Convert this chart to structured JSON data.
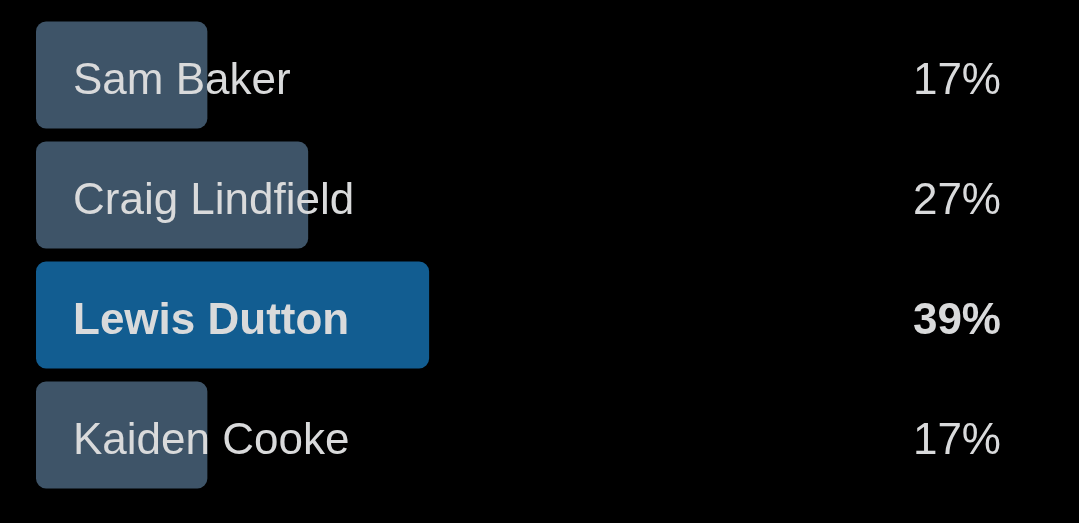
{
  "chart_data": {
    "type": "bar",
    "orientation": "horizontal",
    "categories": [
      "Sam Baker",
      "Craig Lindfield",
      "Lewis Dutton",
      "Kaiden Cooke"
    ],
    "values": [
      17,
      27,
      39,
      17
    ],
    "colors": [
      "#3e5468",
      "#3e5468",
      "#125d91",
      "#3e5468"
    ],
    "value_labels": [
      "17%",
      "27%",
      "39%",
      "17%"
    ],
    "grid": false,
    "legend": false,
    "tick_labels": "y"
  }
}
